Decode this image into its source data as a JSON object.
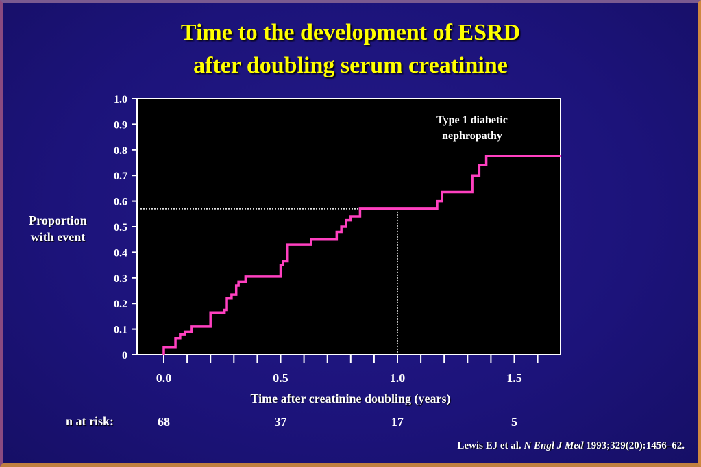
{
  "slide": {
    "title_line1": "Time to the development of ESRD",
    "title_line2": "after doubling serum creatinine",
    "ylabel_line1": "Proportion",
    "ylabel_line2": "with event",
    "xlabel": "Time after creatinine doubling (years)",
    "risk_label": "n at risk:",
    "citation_authors": "Lewis EJ et al. ",
    "citation_journal": "N Engl J Med",
    "citation_ref": " 1993;329(20):1456–62."
  },
  "colors": {
    "background": "#1a1070",
    "title": "#ffff00",
    "plot_area": "#000000",
    "curve": "#ff40c0",
    "text": "#ffffff"
  },
  "chart_data": {
    "type": "line",
    "title": "Time to the development of ESRD after doubling serum creatinine",
    "xlabel": "Time after creatinine doubling (years)",
    "ylabel": "Proportion with event",
    "xlim": [
      -0.1,
      1.72
    ],
    "ylim": [
      0,
      1.0
    ],
    "x_tick_labels": [
      "0.0",
      "0.5",
      "1.0",
      "1.5"
    ],
    "x_tick_label_values": [
      0.0,
      0.5,
      1.0,
      1.5
    ],
    "x_minor_ticks": [
      0.0,
      0.1,
      0.2,
      0.3,
      0.4,
      0.5,
      0.6,
      0.7,
      0.8,
      0.9,
      1.0,
      1.1,
      1.2,
      1.3,
      1.4,
      1.5,
      1.6
    ],
    "y_ticks": [
      0,
      0.1,
      0.2,
      0.3,
      0.4,
      0.5,
      0.6,
      0.7,
      0.8,
      0.9,
      1.0
    ],
    "y_tick_labels": [
      "0",
      "0.1",
      "0.2",
      "0.3",
      "0.4",
      "0.5",
      "0.6",
      "0.7",
      "0.8",
      "0.9",
      "1.0"
    ],
    "grid": false,
    "step": true,
    "series": [
      {
        "name": "Type 1 diabetic nephropathy",
        "color": "#ff40c0",
        "x": [
          0.0,
          0.0,
          0.05,
          0.07,
          0.09,
          0.12,
          0.2,
          0.26,
          0.27,
          0.29,
          0.31,
          0.32,
          0.35,
          0.5,
          0.51,
          0.53,
          0.63,
          0.74,
          0.76,
          0.78,
          0.8,
          0.84,
          1.17,
          1.19,
          1.32,
          1.35,
          1.38,
          1.72
        ],
        "y": [
          0.0,
          0.03,
          0.065,
          0.08,
          0.09,
          0.11,
          0.165,
          0.175,
          0.22,
          0.235,
          0.27,
          0.285,
          0.305,
          0.35,
          0.365,
          0.43,
          0.45,
          0.48,
          0.5,
          0.525,
          0.54,
          0.57,
          0.6,
          0.635,
          0.7,
          0.74,
          0.775,
          0.775
        ]
      }
    ],
    "reference_lines": {
      "horizontal_y": 0.57,
      "vertical_x": 1.0
    },
    "annotation": {
      "line1": "Type 1 diabetic",
      "line2": "nephropathy"
    },
    "n_at_risk": {
      "x": [
        0.0,
        0.5,
        1.0,
        1.5
      ],
      "values": [
        "68",
        "37",
        "17",
        "5"
      ]
    }
  }
}
